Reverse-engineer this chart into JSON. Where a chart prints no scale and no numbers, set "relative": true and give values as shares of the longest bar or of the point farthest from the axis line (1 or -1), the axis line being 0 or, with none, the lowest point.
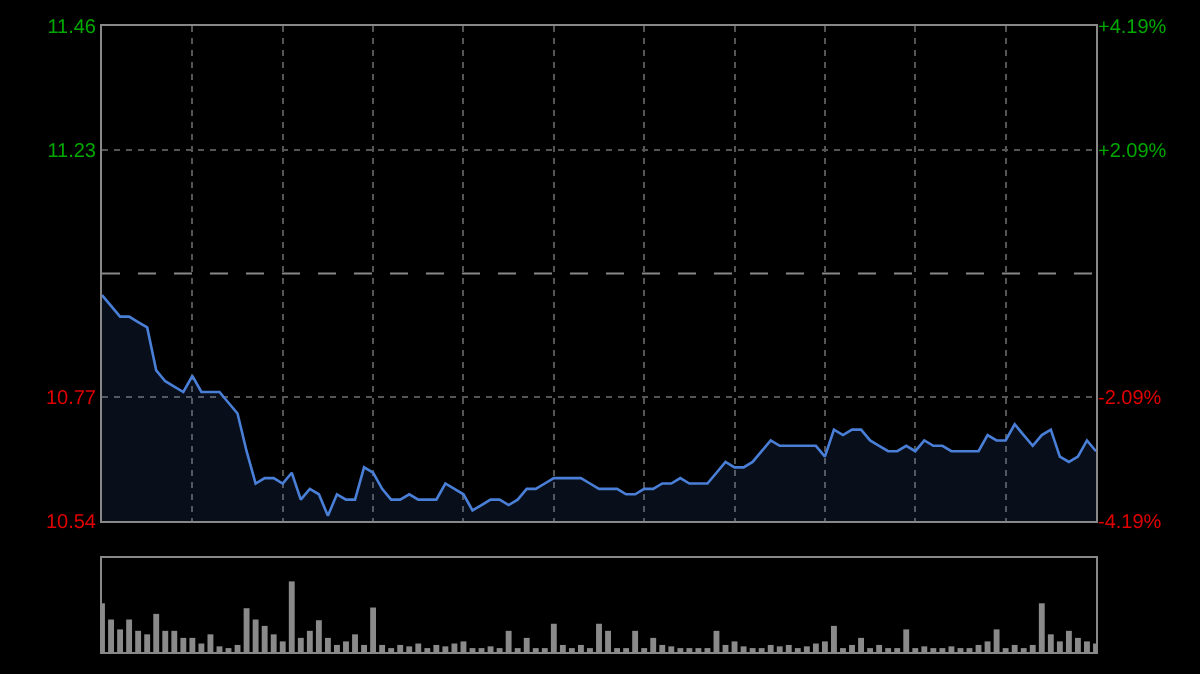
{
  "chart_data": [
    {
      "type": "area",
      "categories": [
        null,
        null,
        null,
        null,
        null,
        null,
        null,
        null,
        null,
        null,
        null,
        null,
        null,
        null,
        null,
        null,
        null,
        null,
        null,
        null,
        null,
        null,
        null,
        null,
        null,
        null,
        null,
        null,
        null,
        null,
        null,
        null,
        null,
        null,
        null,
        null,
        null,
        null,
        null,
        null,
        null,
        null,
        null,
        null,
        null,
        null,
        null,
        null,
        null,
        null,
        null,
        null,
        null,
        null,
        null,
        null,
        null,
        null,
        null,
        null,
        null,
        null,
        null,
        null,
        null,
        null,
        null,
        null,
        null,
        null,
        null,
        null,
        null,
        null,
        null,
        null,
        null,
        null,
        null,
        null,
        null,
        null,
        null,
        null,
        null,
        null,
        null,
        null,
        null,
        null,
        null,
        null,
        null,
        null,
        null,
        null,
        null,
        null,
        null,
        null,
        null,
        null,
        null,
        null,
        null,
        null,
        null,
        null,
        null,
        null,
        null
      ],
      "series": [
        {
          "color": "#4a7fd8",
          "values": [
            10.96,
            10.94,
            10.92,
            10.92,
            10.91,
            10.9,
            10.82,
            10.8,
            10.79,
            10.78,
            10.81,
            10.78,
            10.78,
            10.78,
            10.76,
            10.74,
            10.67,
            10.61,
            10.62,
            10.62,
            10.61,
            10.63,
            10.58,
            10.6,
            10.59,
            10.55,
            10.59,
            10.58,
            10.58,
            10.64,
            10.63,
            10.6,
            10.58,
            10.58,
            10.59,
            10.58,
            10.58,
            10.58,
            10.61,
            10.6,
            10.59,
            10.56,
            10.57,
            10.58,
            10.58,
            10.57,
            10.58,
            10.6,
            10.6,
            10.61,
            10.62,
            10.62,
            10.62,
            10.62,
            10.61,
            10.6,
            10.6,
            10.6,
            10.59,
            10.59,
            10.6,
            10.6,
            10.61,
            10.61,
            10.62,
            10.61,
            10.61,
            10.61,
            10.63,
            10.65,
            10.64,
            10.64,
            10.65,
            10.67,
            10.69,
            10.68,
            10.68,
            10.68,
            10.68,
            10.68,
            10.66,
            10.71,
            10.7,
            10.71,
            10.71,
            10.69,
            10.68,
            10.67,
            10.67,
            10.68,
            10.67,
            10.69,
            10.68,
            10.68,
            10.67,
            10.67,
            10.67,
            10.67,
            10.7,
            10.69,
            10.69,
            10.72,
            10.7,
            10.68,
            10.7,
            10.71,
            10.66,
            10.65,
            10.66,
            10.69,
            10.67
          ]
        }
      ],
      "ylim": [
        10.54,
        11.46
      ],
      "yticks": [
        10.54,
        10.77,
        11.23,
        11.46
      ],
      "y2lim": [
        -4.19,
        4.19
      ],
      "y2ticks": [
        {
          "value": -4.19,
          "label": "-4.19%"
        },
        {
          "value": -2.09,
          "label": "-2.09%"
        },
        {
          "value": 2.09,
          "label": "+2.09%"
        },
        {
          "value": 4.19,
          "label": "+4.19%"
        }
      ],
      "ref_lines": [
        {
          "axis": "y",
          "value": 11.0,
          "color": "#888888",
          "line_style": "dashed"
        }
      ],
      "grid": true,
      "legend": false
    },
    {
      "type": "bar",
      "relative": true,
      "categories": [
        null,
        null,
        null,
        null,
        null,
        null,
        null,
        null,
        null,
        null,
        null,
        null,
        null,
        null,
        null,
        null,
        null,
        null,
        null,
        null,
        null,
        null,
        null,
        null,
        null,
        null,
        null,
        null,
        null,
        null,
        null,
        null,
        null,
        null,
        null,
        null,
        null,
        null,
        null,
        null,
        null,
        null,
        null,
        null,
        null,
        null,
        null,
        null,
        null,
        null,
        null,
        null,
        null,
        null,
        null,
        null,
        null,
        null,
        null,
        null,
        null,
        null,
        null,
        null,
        null,
        null,
        null,
        null,
        null,
        null,
        null,
        null,
        null,
        null,
        null,
        null,
        null,
        null,
        null,
        null,
        null,
        null,
        null,
        null,
        null,
        null,
        null,
        null,
        null,
        null,
        null,
        null,
        null,
        null,
        null,
        null,
        null,
        null,
        null,
        null,
        null,
        null,
        null,
        null,
        null,
        null,
        null,
        null,
        null,
        null,
        null
      ],
      "series": [
        {
          "color": "#8a8a8a",
          "values": [
            0.69,
            0.46,
            0.32,
            0.46,
            0.3,
            0.25,
            0.54,
            0.3,
            0.3,
            0.2,
            0.2,
            0.12,
            0.25,
            0.08,
            0.05,
            0.1,
            0.62,
            0.46,
            0.37,
            0.25,
            0.15,
            1.0,
            0.2,
            0.3,
            0.45,
            0.2,
            0.1,
            0.15,
            0.25,
            0.1,
            0.63,
            0.1,
            0.05,
            0.1,
            0.08,
            0.12,
            0.05,
            0.1,
            0.08,
            0.12,
            0.15,
            0.05,
            0.05,
            0.08,
            0.05,
            0.3,
            0.05,
            0.2,
            0.05,
            0.05,
            0.4,
            0.1,
            0.05,
            0.1,
            0.05,
            0.4,
            0.3,
            0.05,
            0.05,
            0.3,
            0.05,
            0.2,
            0.1,
            0.08,
            0.05,
            0.05,
            0.05,
            0.05,
            0.3,
            0.1,
            0.15,
            0.08,
            0.05,
            0.05,
            0.1,
            0.08,
            0.1,
            0.05,
            0.08,
            0.12,
            0.15,
            0.37,
            0.05,
            0.1,
            0.2,
            0.05,
            0.1,
            0.05,
            0.05,
            0.32,
            0.05,
            0.08,
            0.05,
            0.05,
            0.08,
            0.05,
            0.05,
            0.1,
            0.15,
            0.32,
            0.05,
            0.1,
            0.05,
            0.1,
            0.69,
            0.25,
            0.15,
            0.3,
            0.2,
            0.15,
            0.12
          ]
        }
      ],
      "legend": false
    }
  ]
}
